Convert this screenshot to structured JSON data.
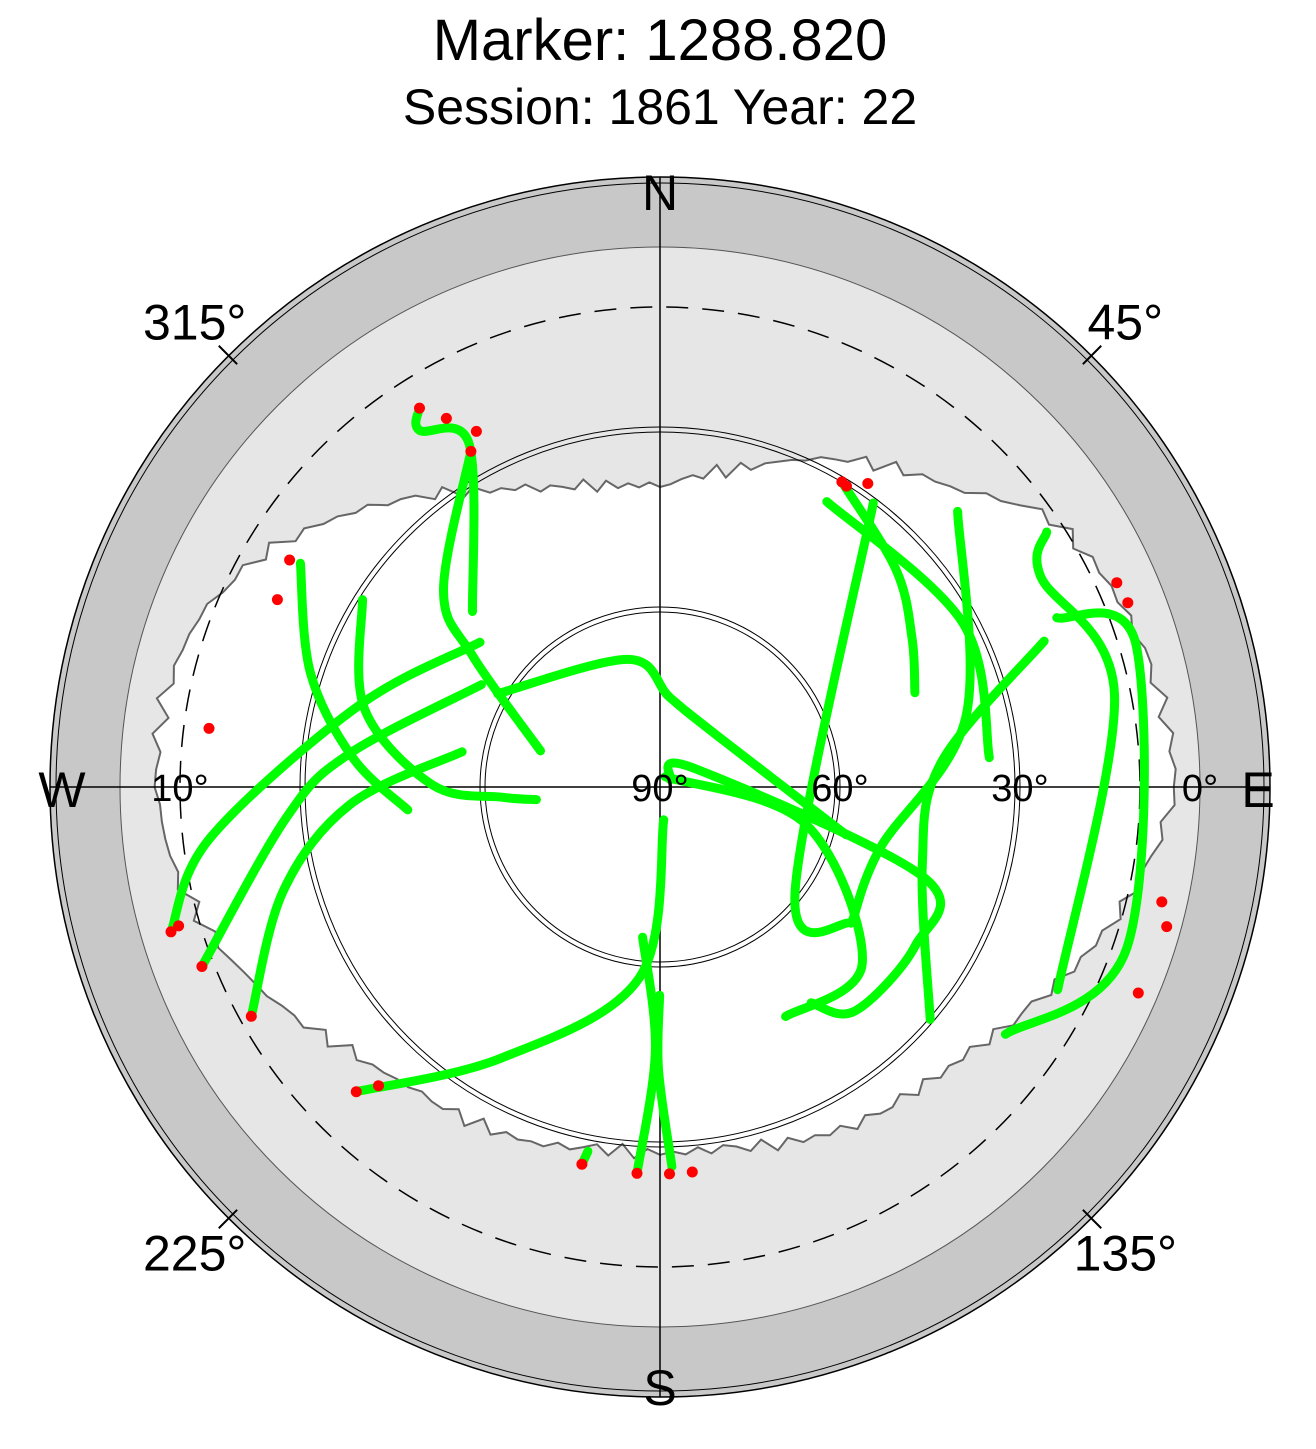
{
  "chart_data": {
    "type": "scatter",
    "title": "Marker: 1288.820",
    "subtitle": "Session: 1861 Year: 22",
    "projection": "polar skyplot (azimuth clockwise from North, elevation 90° at center, 0° at rim)",
    "cardinal_labels": {
      "north": "N",
      "east": "E",
      "south": "S",
      "west": "W"
    },
    "azimuth_tick_labels": [
      {
        "azimuth": 45,
        "label": "45°"
      },
      {
        "azimuth": 135,
        "label": "135°"
      },
      {
        "azimuth": 225,
        "label": "225°"
      },
      {
        "azimuth": 315,
        "label": "315°"
      }
    ],
    "elevation_tick_labels": [
      {
        "side": "east",
        "elevation": 0,
        "label": "0°"
      },
      {
        "side": "east",
        "elevation": 30,
        "label": "30°"
      },
      {
        "side": "east",
        "elevation": 60,
        "label": "60°"
      },
      {
        "side": "east",
        "elevation": 90,
        "label": "90°"
      },
      {
        "side": "west",
        "elevation": 10,
        "label": "10°"
      }
    ],
    "elevation_circles": [
      0,
      30,
      60
    ],
    "elevation_cutoff_dashed": 10,
    "colors": {
      "track": "#00ff00",
      "low_quality_point": "#ff0000",
      "outer_band": "#c8c8c8",
      "obstruction_mask": "#e6e6e6",
      "grid": "#000000"
    },
    "obstruction_mask_elevation": [
      {
        "az": 0,
        "el": 40
      },
      {
        "az": 15,
        "el": 35
      },
      {
        "az": 30,
        "el": 27
      },
      {
        "az": 45,
        "el": 20
      },
      {
        "az": 55,
        "el": 11
      },
      {
        "az": 65,
        "el": 8
      },
      {
        "az": 75,
        "el": 6
      },
      {
        "az": 82,
        "el": 5
      },
      {
        "az": 90,
        "el": 4
      },
      {
        "az": 100,
        "el": 8
      },
      {
        "az": 110,
        "el": 13
      },
      {
        "az": 120,
        "el": 18
      },
      {
        "az": 130,
        "el": 22
      },
      {
        "az": 140,
        "el": 24
      },
      {
        "az": 150,
        "el": 25
      },
      {
        "az": 160,
        "el": 27
      },
      {
        "az": 170,
        "el": 29
      },
      {
        "az": 180,
        "el": 29
      },
      {
        "az": 190,
        "el": 29
      },
      {
        "az": 200,
        "el": 27
      },
      {
        "az": 210,
        "el": 26
      },
      {
        "az": 220,
        "el": 25
      },
      {
        "az": 230,
        "el": 22
      },
      {
        "az": 240,
        "el": 17
      },
      {
        "az": 250,
        "el": 12
      },
      {
        "az": 260,
        "el": 8
      },
      {
        "az": 270,
        "el": 6
      },
      {
        "az": 280,
        "el": 6
      },
      {
        "az": 290,
        "el": 8
      },
      {
        "az": 300,
        "el": 13
      },
      {
        "az": 310,
        "el": 20
      },
      {
        "az": 320,
        "el": 27
      },
      {
        "az": 330,
        "el": 33
      },
      {
        "az": 340,
        "el": 37
      },
      {
        "az": 350,
        "el": 39
      }
    ],
    "series": [
      {
        "track": [
          [
            301.9,
            19.4
          ],
          [
            288.1,
            28.7
          ],
          [
            275.4,
            38.6
          ],
          [
            264.8,
            47.8
          ]
        ],
        "red_points": [
          [
            301.5,
            17.6
          ],
          [
            296.1,
            19.0
          ]
        ]
      },
      {
        "track": [
          [
            240.7,
            11.9
          ],
          [
            254.5,
            24.8
          ],
          [
            266.8,
            38.3
          ],
          [
            280.1,
            56.5
          ]
        ],
        "red_points": [
          [
            240.7,
            11.9
          ]
        ]
      },
      {
        "track": [
          [
            248.6,
            8.0
          ],
          [
            265.3,
            27.5
          ],
          [
            276.0,
            37.8
          ],
          [
            299.8,
            55.7
          ]
        ],
        "red_points": [
          [
            248.6,
            8.0
          ]
        ]
      },
      {
        "track": [
          [
            327.6,
            15.2
          ],
          [
            326.0,
            18.3
          ],
          [
            330.9,
            24.6
          ],
          [
            313.1,
            47.2
          ]
        ],
        "red_points": [
          [
            327.6,
            15.2
          ],
          [
            329.9,
            19.0
          ],
          [
            332.7,
            23.3
          ]
        ]
      },
      {
        "track": [
          [
            330.6,
            25.8
          ],
          [
            312.2,
            41.3
          ],
          [
            305.0,
            51.9
          ],
          [
            286.8,
            69.2
          ]
        ],
        "red_points": [
          [
            330.6,
            25.8
          ]
        ]
      },
      {
        "track": [
          [
            253.5,
            5.0
          ],
          [
            263.5,
            14.5
          ],
          [
            285.0,
            37.9
          ],
          [
            308.8,
            51.5
          ]
        ],
        "red_points": [
          [
            253.5,
            5.0
          ],
          [
            253.9,
            6.5
          ]
        ]
      },
      {
        "track": [
          [
            224.9,
            18.3
          ],
          [
            210.3,
            37.7
          ],
          [
            186.2,
            58.0
          ],
          [
            173.5,
            84.5
          ]
        ],
        "red_points": [
          [
            224.9,
            18.3
          ],
          [
            223.3,
            21.6
          ]
        ]
      },
      {
        "track": [
          [
            191.7,
            25.8
          ],
          [
            191.2,
            28.1
          ]
        ],
        "red_points": [
          [
            191.7,
            25.8
          ]
        ]
      },
      {
        "track": [
          [
            183.4,
            25.5
          ],
          [
            181.0,
            46.2
          ],
          [
            186.6,
            64.8
          ]
        ],
        "red_points": [
          [
            183.4,
            25.5
          ]
        ]
      },
      {
        "track": [
          [
            178.2,
            26.7
          ],
          [
            180.3,
            42.9
          ],
          [
            180.1,
            55.3
          ]
        ],
        "red_points": [
          [
            178.6,
            25.5
          ],
          [
            175.2,
            25.6
          ]
        ]
      },
      {
        "track": [
          [
            299.9,
            58.8
          ],
          [
            346.1,
            68.1
          ],
          [
            6.3,
            75.0
          ],
          [
            47.9,
            77.2
          ],
          [
            104.4,
            58.0
          ]
        ],
        "red_points": []
      },
      {
        "track": [
          [
            55.0,
            87.9
          ],
          [
            61.4,
            83.5
          ],
          [
            108.9,
            43.5
          ],
          [
            121.9,
            39.9
          ],
          [
            139.0,
            40.5
          ],
          [
            145.0,
            46.1
          ]
        ],
        "red_points": []
      },
      {
        "track": [
          [
            27.0,
            88.1
          ],
          [
            104.2,
            65.0
          ],
          [
            131.2,
            45.2
          ],
          [
            151.3,
            46.4
          ]
        ],
        "red_points": []
      },
      {
        "track": [
          [
            30.3,
            34.9
          ],
          [
            61.5,
            32.6
          ],
          [
            84.9,
            34.9
          ]
        ],
        "red_points": []
      },
      {
        "track": [
          [
            47.2,
            22.4
          ],
          [
            77.1,
            37.7
          ],
          [
            105.4,
            51.9
          ],
          [
            124.5,
            51.0
          ]
        ],
        "red_points": []
      },
      {
        "track": [
          [
            36.9,
            30.8
          ],
          [
            128.1,
            61.4
          ],
          [
            125.5,
            50.9
          ]
        ],
        "red_points": []
      },
      {
        "track": [
          [
            69.2,
            21.5
          ],
          [
            84.9,
            42.9
          ],
          [
            106.5,
            44.4
          ],
          [
            130.7,
            30.6
          ]
        ],
        "red_points": []
      },
      {
        "track": [
          [
            30.8,
            30.8
          ],
          [
            47.3,
            36.5
          ],
          [
            59.4,
            41.2
          ],
          [
            69.7,
            44.7
          ]
        ],
        "red_points": [
          [
            30.8,
            30.8
          ],
          [
            31.8,
            31.0
          ],
          [
            34.4,
            28.7
          ]
        ]
      },
      {
        "track": [
          [
            66.9,
            18.1
          ],
          [
            73.5,
            7.2
          ],
          [
            109.0,
            7.7
          ],
          [
            125.6,
            19.2
          ]
        ],
        "red_points": [
          [
            105.4,
            2.4
          ],
          [
            102.9,
            4.2
          ],
          [
            113.3,
            3.2
          ]
        ]
      },
      {
        "track": [
          [
            56.6,
            12.8
          ],
          [
            61.1,
            17.5
          ],
          [
            78.5,
            12.7
          ],
          [
            117.0,
            15.6
          ]
        ],
        "red_points": [
          [
            68.5,
            6.2
          ],
          [
            65.9,
            6.6
          ]
        ]
      },
      {
        "track": [
          [
            302.2,
            31.4
          ],
          [
            284.9,
            39.0
          ],
          [
            270.5,
            52.1
          ],
          [
            266.3,
            63.6
          ],
          [
            264.2,
            69.3
          ]
        ],
        "red_points": [
          [
            277.4,
            14.2
          ]
        ]
      }
    ]
  }
}
